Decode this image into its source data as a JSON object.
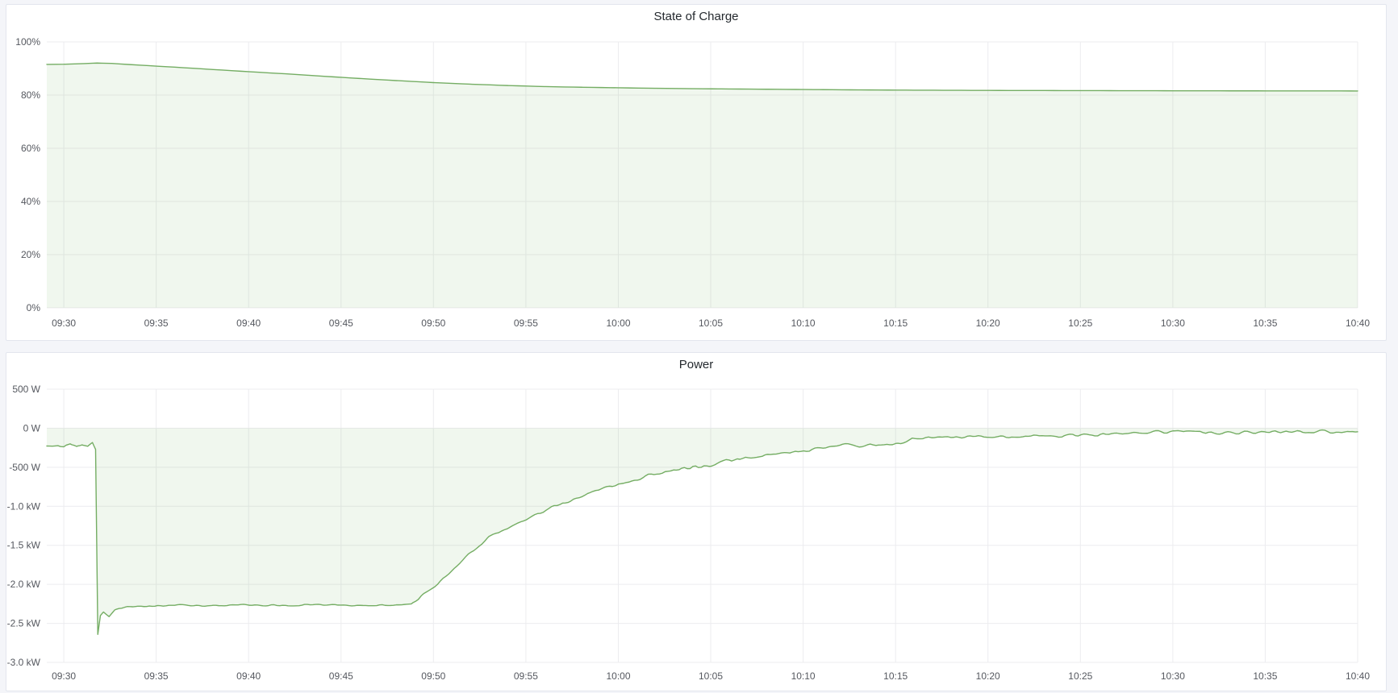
{
  "page": {
    "background": "#f4f5f9",
    "panel_background": "#ffffff",
    "panel_border_color": "#e3e6ee",
    "grid_color": "#ececef",
    "axis_text_color": "#55585f",
    "title_color": "#24292e"
  },
  "chart_data": [
    {
      "type": "area",
      "title": "State of Charge",
      "xlabel": "",
      "ylabel": "",
      "x_tick_labels": [
        "09:30",
        "09:35",
        "09:40",
        "09:45",
        "09:50",
        "09:55",
        "10:00",
        "10:05",
        "10:10",
        "10:15",
        "10:20",
        "10:25",
        "10:30",
        "10:35",
        "10:40"
      ],
      "x_tick_minutes": [
        0,
        5,
        10,
        15,
        20,
        25,
        30,
        35,
        40,
        45,
        50,
        55,
        60,
        65,
        70
      ],
      "x_domain": [
        -0.92,
        70
      ],
      "ylim": [
        0,
        100
      ],
      "y_ticks": [
        {
          "value": 100,
          "label": "100%"
        },
        {
          "value": 80,
          "label": "80%"
        },
        {
          "value": 60,
          "label": "60%"
        },
        {
          "value": 40,
          "label": "40%"
        },
        {
          "value": 20,
          "label": "20%"
        },
        {
          "value": 0,
          "label": "0%"
        }
      ],
      "grid": true,
      "legend": "hidden",
      "series": [
        {
          "name": "State of Charge",
          "unit": "%",
          "line_color": "#74ad63",
          "fill_color": "rgba(115,178,101,0.11)",
          "fill_to_value": 0,
          "sample_step": 0.5,
          "noise_segments": [],
          "keyframes": [
            [
              -0.92,
              91.55
            ],
            [
              0,
              91.6
            ],
            [
              0.9,
              91.8
            ],
            [
              1.8,
              92.05
            ],
            [
              2.6,
              91.9
            ],
            [
              4,
              91.3
            ],
            [
              6,
              90.5
            ],
            [
              8,
              89.65
            ],
            [
              10,
              88.8
            ],
            [
              12,
              88.0
            ],
            [
              14,
              87.1
            ],
            [
              16,
              86.25
            ],
            [
              18,
              85.45
            ],
            [
              20,
              84.7
            ],
            [
              22,
              84.1
            ],
            [
              24,
              83.6
            ],
            [
              26,
              83.2
            ],
            [
              28,
              82.95
            ],
            [
              30,
              82.75
            ],
            [
              32,
              82.55
            ],
            [
              34,
              82.4
            ],
            [
              36,
              82.3
            ],
            [
              38,
              82.2
            ],
            [
              40,
              82.1
            ],
            [
              43,
              81.95
            ],
            [
              46,
              81.85
            ],
            [
              50,
              81.75
            ],
            [
              54,
              81.7
            ],
            [
              58,
              81.65
            ],
            [
              62,
              81.6
            ],
            [
              66,
              81.58
            ],
            [
              70,
              81.55
            ]
          ]
        }
      ]
    },
    {
      "type": "area",
      "title": "Power",
      "xlabel": "",
      "ylabel": "",
      "x_tick_labels": [
        "09:30",
        "09:35",
        "09:40",
        "09:45",
        "09:50",
        "09:55",
        "10:00",
        "10:05",
        "10:10",
        "10:15",
        "10:20",
        "10:25",
        "10:30",
        "10:35",
        "10:40"
      ],
      "x_tick_minutes": [
        0,
        5,
        10,
        15,
        20,
        25,
        30,
        35,
        40,
        45,
        50,
        55,
        60,
        65,
        70
      ],
      "x_domain": [
        -0.92,
        70
      ],
      "ylim": [
        -3000,
        500
      ],
      "y_ticks": [
        {
          "value": 500,
          "label": "500 W"
        },
        {
          "value": 0,
          "label": "0 W"
        },
        {
          "value": -500,
          "label": "-500 W"
        },
        {
          "value": -1000,
          "label": "-1.0 kW"
        },
        {
          "value": -1500,
          "label": "-1.5 kW"
        },
        {
          "value": -2000,
          "label": "-2.0 kW"
        },
        {
          "value": -2500,
          "label": "-2.5 kW"
        },
        {
          "value": -3000,
          "label": "-3.0 kW"
        }
      ],
      "grid": true,
      "legend": "hidden",
      "series": [
        {
          "name": "Power",
          "unit": "W",
          "line_color": "#74ad63",
          "fill_color": "rgba(115,178,101,0.11)",
          "fill_to_value": 0,
          "sample_step": 0.15,
          "noise_seed": 7,
          "noise_segments": [
            [
              -1,
              1.6,
              22
            ],
            [
              1.6,
              2.1,
              4
            ],
            [
              2.1,
              18.9,
              16
            ],
            [
              18.9,
              30,
              28
            ],
            [
              30,
              45,
              34
            ],
            [
              45,
              70,
              30
            ]
          ],
          "keyframes": [
            [
              -0.92,
              -225
            ],
            [
              0,
              -230
            ],
            [
              0.35,
              -205
            ],
            [
              0.7,
              -250
            ],
            [
              1.0,
              -215
            ],
            [
              1.3,
              -240
            ],
            [
              1.55,
              -185
            ],
            [
              1.72,
              -270
            ],
            [
              1.84,
              -2640
            ],
            [
              1.98,
              -2400
            ],
            [
              2.15,
              -2350
            ],
            [
              2.45,
              -2410
            ],
            [
              2.75,
              -2330
            ],
            [
              3.3,
              -2295
            ],
            [
              4,
              -2280
            ],
            [
              6,
              -2268
            ],
            [
              8,
              -2276
            ],
            [
              10,
              -2262
            ],
            [
              12,
              -2272
            ],
            [
              14,
              -2264
            ],
            [
              16,
              -2272
            ],
            [
              18,
              -2268
            ],
            [
              18.8,
              -2255
            ],
            [
              19.4,
              -2140
            ],
            [
              20,
              -2030
            ],
            [
              21,
              -1830
            ],
            [
              22,
              -1600
            ],
            [
              23,
              -1400
            ],
            [
              24,
              -1280
            ],
            [
              25,
              -1180
            ],
            [
              26,
              -1060
            ],
            [
              27,
              -960
            ],
            [
              28,
              -870
            ],
            [
              29,
              -790
            ],
            [
              30,
              -730
            ],
            [
              31,
              -650
            ],
            [
              32,
              -580
            ],
            [
              33,
              -530
            ],
            [
              34,
              -500
            ],
            [
              35,
              -470
            ],
            [
              36,
              -420
            ],
            [
              37,
              -380
            ],
            [
              38,
              -350
            ],
            [
              39,
              -330
            ],
            [
              40,
              -290
            ],
            [
              41,
              -260
            ],
            [
              42,
              -230
            ],
            [
              43,
              -215
            ],
            [
              44,
              -200
            ],
            [
              45,
              -190
            ],
            [
              45.6,
              -180
            ],
            [
              45.9,
              -135
            ],
            [
              47,
              -130
            ],
            [
              48,
              -120
            ],
            [
              50,
              -110
            ],
            [
              52,
              -100
            ],
            [
              54,
              -95
            ],
            [
              56,
              -80
            ],
            [
              58,
              -65
            ],
            [
              60,
              -48
            ],
            [
              61,
              -42
            ],
            [
              62,
              -60
            ],
            [
              64,
              -50
            ],
            [
              66,
              -45
            ],
            [
              68,
              -40
            ],
            [
              70,
              -45
            ]
          ]
        }
      ]
    }
  ]
}
